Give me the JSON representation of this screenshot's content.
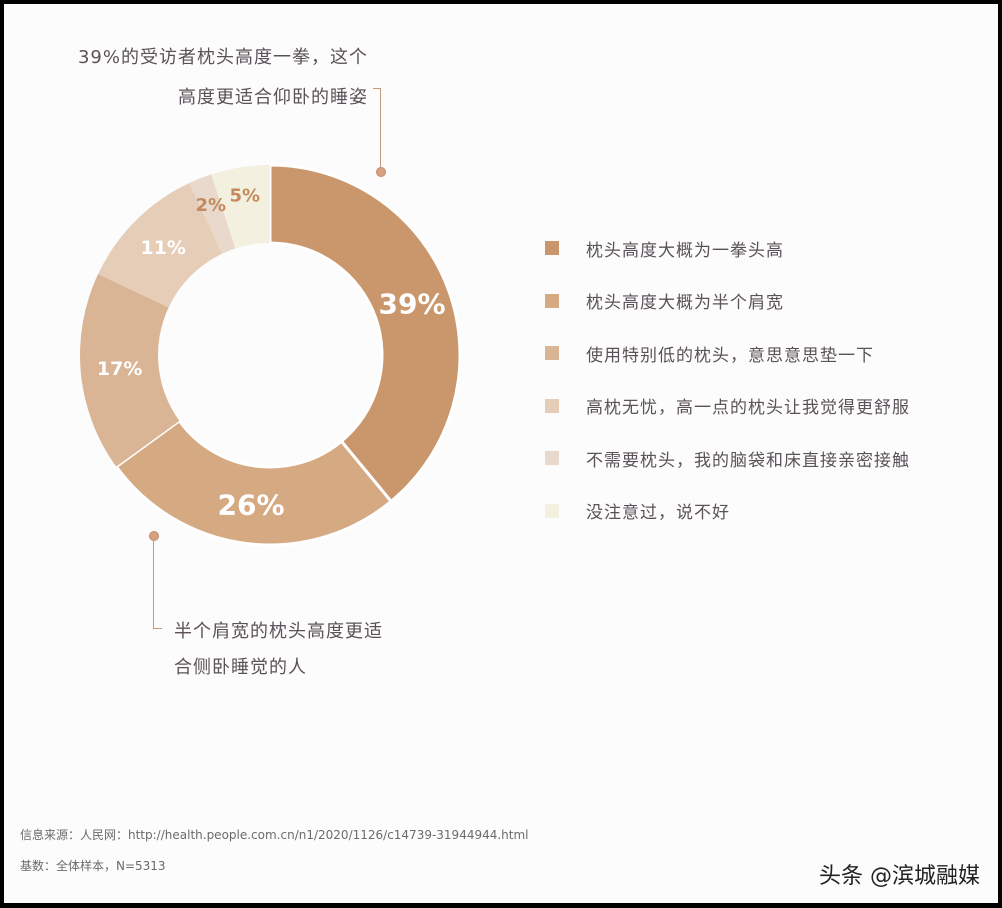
{
  "chart_data": {
    "type": "pie",
    "subtype": "donut",
    "title": "",
    "categories": [
      "枕头高度大概为一拳头高",
      "枕头高度大概为半个肩宽",
      "使用特别低的枕头，意思意思垫一下",
      "高枕无忧，高一点的枕头让我觉得更舒服",
      "不需要枕头，我的脑袋和床直接亲密接触",
      "没注意过，说不好"
    ],
    "values": [
      39,
      26,
      17,
      11,
      2,
      5
    ],
    "labels": [
      "39%",
      "26%",
      "17%",
      "11%",
      "2%",
      "5%"
    ],
    "colors": [
      "#c9976b",
      "#d5aa83",
      "#d9b596",
      "#e6cdb7",
      "#e9d9cc",
      "#f3f0e0"
    ],
    "start_angle": "12 o'clock, clockwise",
    "legend_position": "right",
    "annotations": [
      "39%的受访者枕头高度一拳，这个高度更适合仰卧的睡姿",
      "半个肩宽的枕头高度更适合侧卧睡觉的人"
    ]
  },
  "annotations": {
    "top_line1": "39%的受访者枕头高度一拳，这个",
    "top_line2": "高度更适合仰卧的睡姿",
    "bottom_line1": "半个肩宽的枕头高度更适",
    "bottom_line2": "合侧卧睡觉的人"
  },
  "legend": [
    {
      "label": "枕头高度大概为一拳头高",
      "color": "#c9976b"
    },
    {
      "label": "枕头高度大概为半个肩宽",
      "color": "#d5aa83"
    },
    {
      "label": "使用特别低的枕头，意思意思垫一下",
      "color": "#d9b596"
    },
    {
      "label": "高枕无忧，高一点的枕头让我觉得更舒服",
      "color": "#e6cdb7"
    },
    {
      "label": "不需要枕头，我的脑袋和床直接亲密接触",
      "color": "#e9d9cc"
    },
    {
      "label": "没注意过，说不好",
      "color": "#f3f0e0"
    }
  ],
  "footer": {
    "source": "信息来源：人民网：http://health.people.com.cn/n1/2020/1126/c14739-31944944.html",
    "base": "基数：全体样本，N=5313"
  },
  "watermark": "头条 @滨城融媒"
}
